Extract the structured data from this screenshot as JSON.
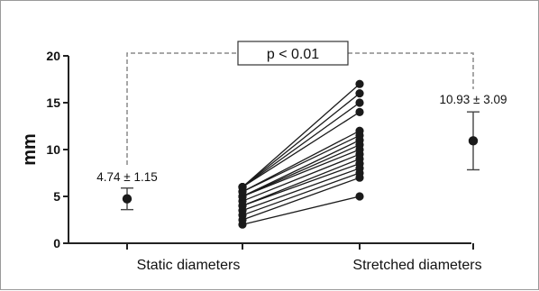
{
  "chart_data": {
    "type": "scatter",
    "ylabel": "mm",
    "ylim": [
      0,
      20
    ],
    "yticks": [
      0,
      5,
      10,
      15,
      20
    ],
    "categories": [
      "Static diameters",
      "Stretched diameters"
    ],
    "summary": [
      {
        "category": "Static diameters",
        "mean": 4.74,
        "sd": 1.15,
        "label": "4.74 ± 1.15"
      },
      {
        "category": "Stretched diameters",
        "mean": 10.93,
        "sd": 3.09,
        "label": "10.93 ± 3.09"
      }
    ],
    "paired_values": [
      {
        "static": 2,
        "stretched": 5
      },
      {
        "static": 2.5,
        "stretched": 7
      },
      {
        "static": 3,
        "stretched": 7.5
      },
      {
        "static": 3.5,
        "stretched": 8
      },
      {
        "static": 4,
        "stretched": 8.5
      },
      {
        "static": 4,
        "stretched": 9
      },
      {
        "static": 4.5,
        "stretched": 9.5
      },
      {
        "static": 5,
        "stretched": 10
      },
      {
        "static": 5,
        "stretched": 10.5
      },
      {
        "static": 5,
        "stretched": 11
      },
      {
        "static": 5.5,
        "stretched": 11.5
      },
      {
        "static": 5.5,
        "stretched": 12
      },
      {
        "static": 6,
        "stretched": 14
      },
      {
        "static": 6,
        "stretched": 15
      },
      {
        "static": 6,
        "stretched": 16
      },
      {
        "static": 6,
        "stretched": 17
      }
    ],
    "annotation": "p < 0.01",
    "grid": false
  },
  "colors": {
    "point": "#1a1a1a",
    "line": "#1a1a1a",
    "bracket": "#8a8a8a",
    "axis": "#222222"
  }
}
